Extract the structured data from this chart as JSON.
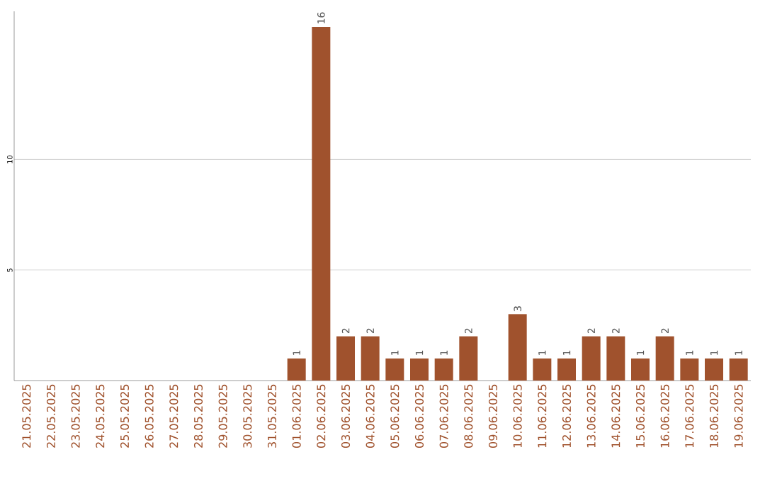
{
  "chart_data": {
    "type": "bar",
    "categories": [
      "21.05.2025",
      "22.05.2025",
      "23.05.2025",
      "24.05.2025",
      "25.05.2025",
      "26.05.2025",
      "27.05.2025",
      "28.05.2025",
      "29.05.2025",
      "30.05.2025",
      "31.05.2025",
      "01.06.2025",
      "02.06.2025",
      "03.06.2025",
      "04.06.2025",
      "05.06.2025",
      "06.06.2025",
      "07.06.2025",
      "08.06.2025",
      "09.06.2025",
      "10.06.2025",
      "11.06.2025",
      "12.06.2025",
      "13.06.2025",
      "14.06.2025",
      "15.06.2025",
      "16.06.2025",
      "17.06.2025",
      "18.06.2025",
      "19.06.2025"
    ],
    "values": [
      0,
      0,
      0,
      0,
      0,
      0,
      0,
      0,
      0,
      0,
      0,
      1,
      16,
      2,
      2,
      1,
      1,
      1,
      2,
      0,
      3,
      1,
      1,
      2,
      2,
      1,
      2,
      1,
      1,
      1
    ],
    "value_labels": [
      null,
      null,
      null,
      null,
      null,
      null,
      null,
      null,
      null,
      null,
      null,
      "1",
      "16",
      "2",
      "2",
      "1",
      "1",
      "1",
      "2",
      null,
      "3",
      "1",
      "1",
      "2",
      "2",
      "1",
      "2",
      "1",
      "1",
      "1"
    ],
    "color": "#a0522d",
    "ylim": [
      0,
      16.7
    ],
    "yticks": [
      5,
      10
    ],
    "grid": "y"
  }
}
